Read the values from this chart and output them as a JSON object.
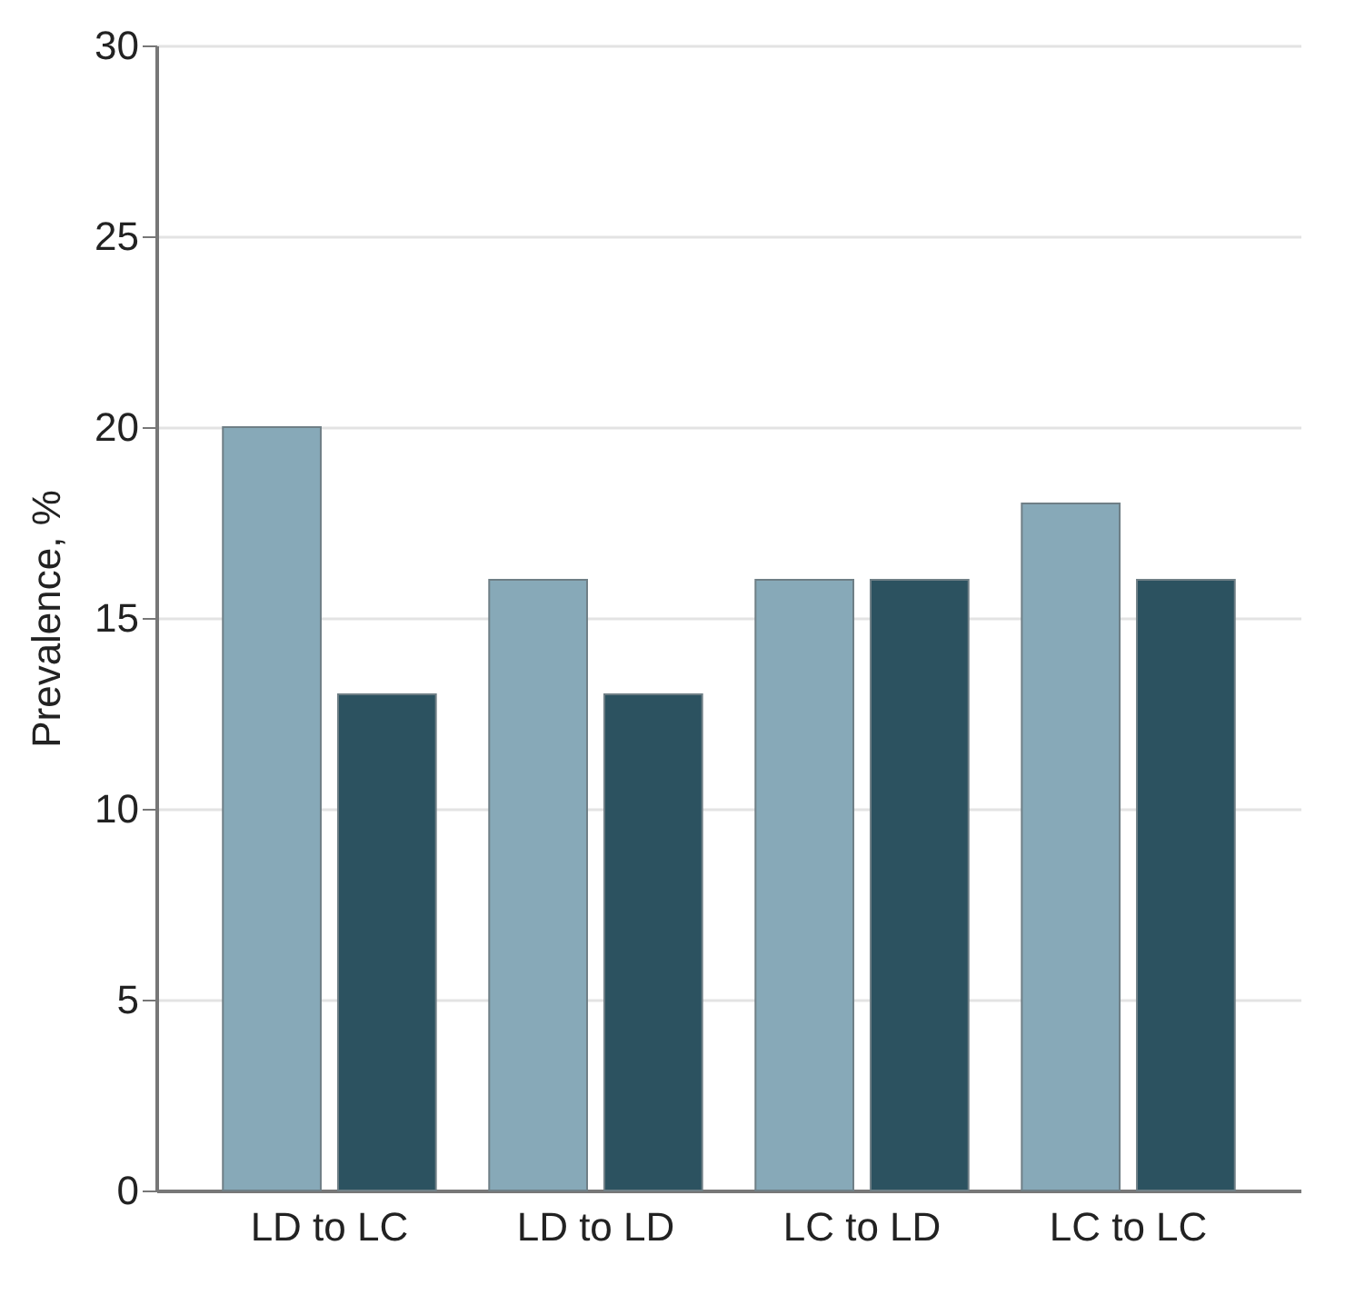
{
  "chart_data": {
    "type": "bar",
    "ylabel": "Prevalence, %",
    "categories": [
      "LD to LC",
      "LD to LD",
      "LC to LD",
      "LC to LC"
    ],
    "series": [
      {
        "color": "#87a9b8",
        "values": [
          20,
          16,
          16,
          18
        ]
      },
      {
        "color": "#2c5260",
        "values": [
          13,
          13,
          16,
          16
        ]
      }
    ],
    "ylim": [
      0,
      30
    ],
    "yticks": [
      0,
      5,
      10,
      15,
      20,
      25,
      30
    ],
    "grid": "y",
    "legend": false
  }
}
